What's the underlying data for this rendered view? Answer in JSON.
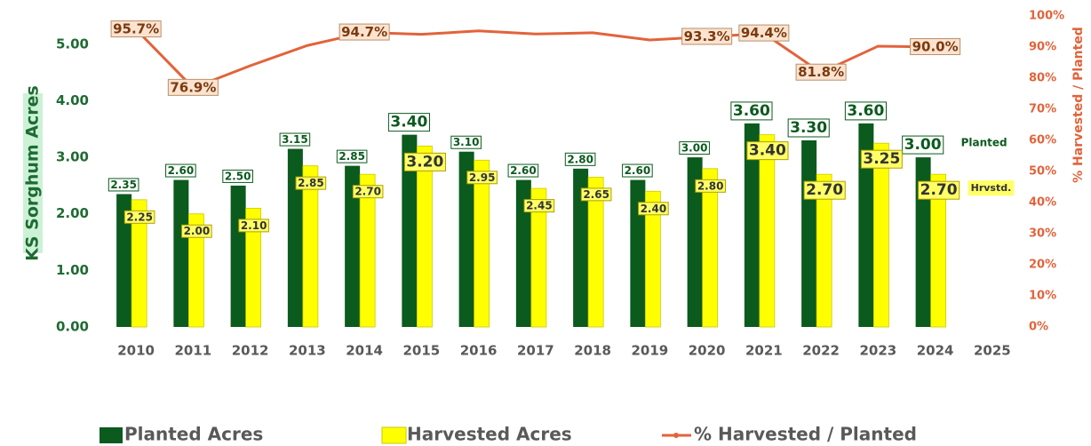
{
  "chart_data": {
    "type": "bar",
    "y_axis_label": "KS Sorghum Acres",
    "y2_axis_label": "% Harvested / Planted",
    "categories": [
      "2010",
      "2011",
      "2012",
      "2013",
      "2014",
      "2015",
      "2016",
      "2017",
      "2018",
      "2019",
      "2020",
      "2021",
      "2022",
      "2023",
      "2024",
      "2025"
    ],
    "series": [
      {
        "name": "Planted Acres",
        "color": "#0b5a1e",
        "values": [
          2.35,
          2.6,
          2.5,
          3.15,
          2.85,
          3.4,
          3.1,
          2.6,
          2.8,
          2.6,
          3.0,
          3.6,
          3.3,
          3.6,
          3.0,
          null
        ],
        "value_labels": [
          "2.35",
          "2.60",
          "2.50",
          "3.15",
          "2.85",
          "3.40",
          "3.10",
          "2.60",
          "2.80",
          "2.60",
          "3.00",
          "3.60",
          "3.30",
          "3.60",
          "3.00",
          null
        ]
      },
      {
        "name": "Harvested Acres",
        "color": "#ffff00",
        "values": [
          2.25,
          2.0,
          2.1,
          2.85,
          2.7,
          3.2,
          2.95,
          2.45,
          2.65,
          2.4,
          2.8,
          3.4,
          2.7,
          3.25,
          2.7,
          null
        ],
        "value_labels": [
          "2.25",
          "2.00",
          "2.10",
          "2.85",
          "2.70",
          "3.20",
          "2.95",
          "2.45",
          "2.65",
          "2.40",
          "2.80",
          "3.40",
          "2.70",
          "3.25",
          "2.70",
          null
        ]
      },
      {
        "name": "% Harvested / Planted",
        "color": "#e2633b",
        "type": "line",
        "axis": "y2",
        "values": [
          95.7,
          76.9,
          84.0,
          90.5,
          94.7,
          94.1,
          95.2,
          94.2,
          94.6,
          92.3,
          93.3,
          94.4,
          81.8,
          90.3,
          90.0,
          null
        ],
        "value_labels": [
          "95.7%",
          "76.9%",
          null,
          null,
          "94.7%",
          null,
          null,
          null,
          null,
          null,
          "93.3%",
          "94.4%",
          "81.8%",
          null,
          "90.0%",
          null
        ]
      }
    ],
    "annotations": [
      "Planted",
      "Hrvstd."
    ],
    "ylim": [
      0,
      5.5
    ],
    "yticks": [
      {
        "value": 0,
        "label": "0.00"
      },
      {
        "value": 1,
        "label": "1.00"
      },
      {
        "value": 2,
        "label": "2.00"
      },
      {
        "value": 3,
        "label": "3.00"
      },
      {
        "value": 4,
        "label": "4.00"
      },
      {
        "value": 5,
        "label": "5.00"
      }
    ],
    "y2lim": [
      0,
      100
    ],
    "y2ticks": [
      {
        "value": 0,
        "label": "0%"
      },
      {
        "value": 10,
        "label": "10%"
      },
      {
        "value": 20,
        "label": "20%"
      },
      {
        "value": 30,
        "label": "30%"
      },
      {
        "value": 40,
        "label": "40%"
      },
      {
        "value": 50,
        "label": "50%"
      },
      {
        "value": 60,
        "label": "60%"
      },
      {
        "value": 70,
        "label": "70%"
      },
      {
        "value": 80,
        "label": "80%"
      },
      {
        "value": 90,
        "label": "90%"
      },
      {
        "value": 100,
        "label": "100%"
      }
    ],
    "grid": false,
    "legend": "bottom"
  }
}
